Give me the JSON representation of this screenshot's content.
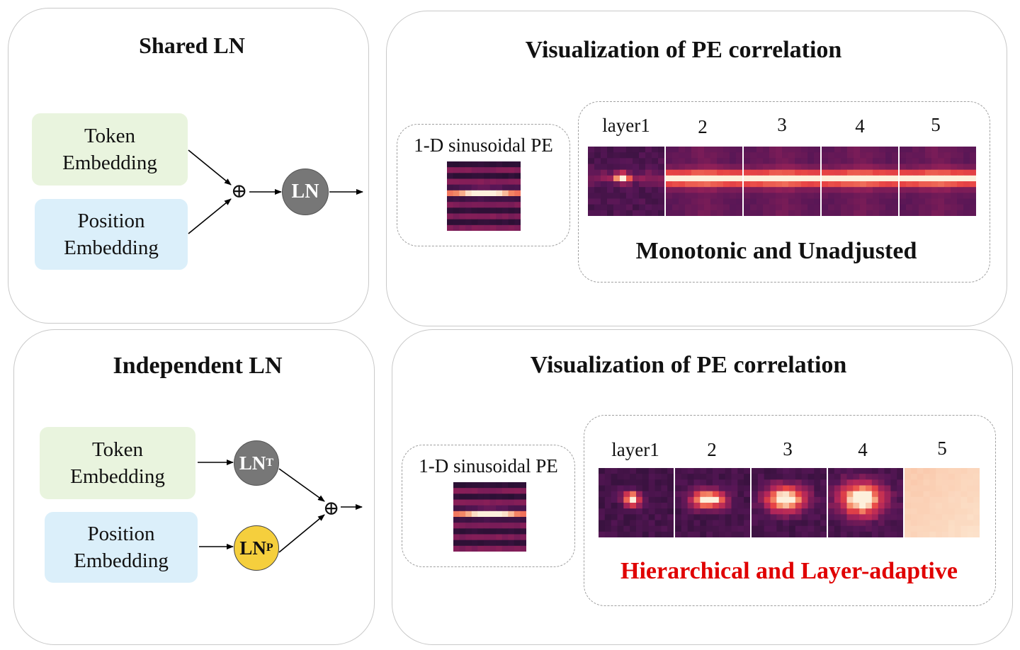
{
  "top_left": {
    "title": "Shared LN",
    "token": [
      "Token",
      "Embedding"
    ],
    "position": [
      "Position",
      "Embedding"
    ],
    "ln": "LN",
    "plus": "⊕"
  },
  "top_right": {
    "title": "Visualization of PE correlation",
    "pe_label": "1-D sinusoidal PE",
    "layer_labels": [
      "layer1",
      "2",
      "3",
      "4",
      "5"
    ],
    "caption": "Monotonic and Unadjusted"
  },
  "bottom_left": {
    "title": "Independent LN",
    "token": [
      "Token",
      "Embedding"
    ],
    "position": [
      "Position",
      "Embedding"
    ],
    "ln_t": "LN",
    "ln_t_sub": "T",
    "ln_p": "LN",
    "ln_p_sub": "P",
    "plus": "⊕"
  },
  "bottom_right": {
    "title": "Visualization of PE correlation",
    "pe_label": "1-D sinusoidal PE",
    "layer_labels": [
      "layer1",
      "2",
      "3",
      "4",
      "5"
    ],
    "caption": "Hierarchical and Layer-adaptive"
  },
  "colors": {
    "token_bg": "#e9f4de",
    "position_bg": "#dbeffa",
    "ln_gray": "#777777",
    "ln_yellow": "#f5cf3d",
    "caption_red": "#e00000",
    "heatmap_dark": "#2b1238",
    "heatmap_mid": "#b8255a",
    "heatmap_hot": "#f5a07a"
  }
}
